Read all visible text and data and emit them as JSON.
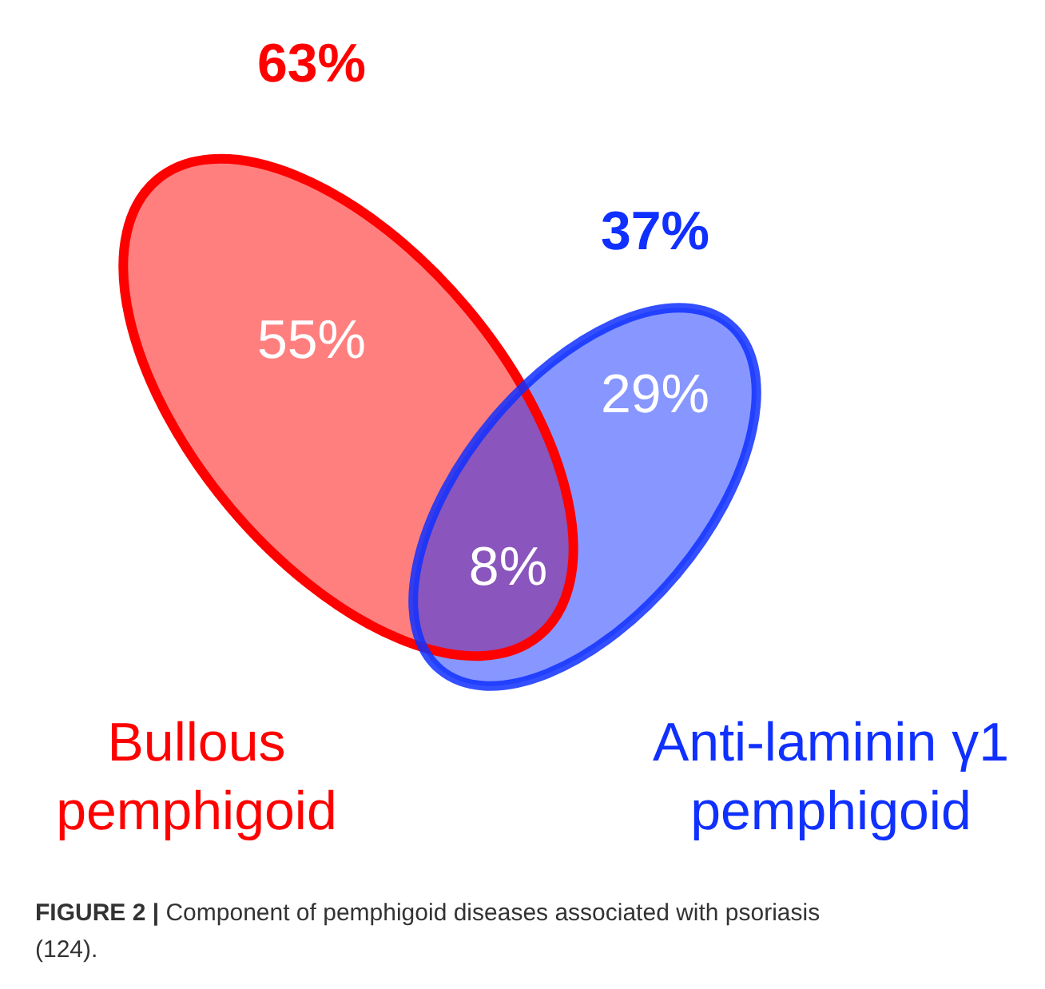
{
  "chart_data": {
    "type": "other",
    "categories": [
      "Bullous pemphigoid",
      "Anti-laminin γ1 pemphigoid",
      null
    ],
    "values": [
      55,
      29,
      8
    ],
    "value_labels": [
      "55%",
      "29%",
      "8%"
    ],
    "totals": [
      "63%",
      "37%"
    ],
    "colors": [
      "#ff0000",
      "#1030ff",
      "#8a55bd"
    ],
    "annotations": [
      "FIGURE 2 | Component of pemphigoid diseases associated with psoriasis (124)."
    ]
  }
}
